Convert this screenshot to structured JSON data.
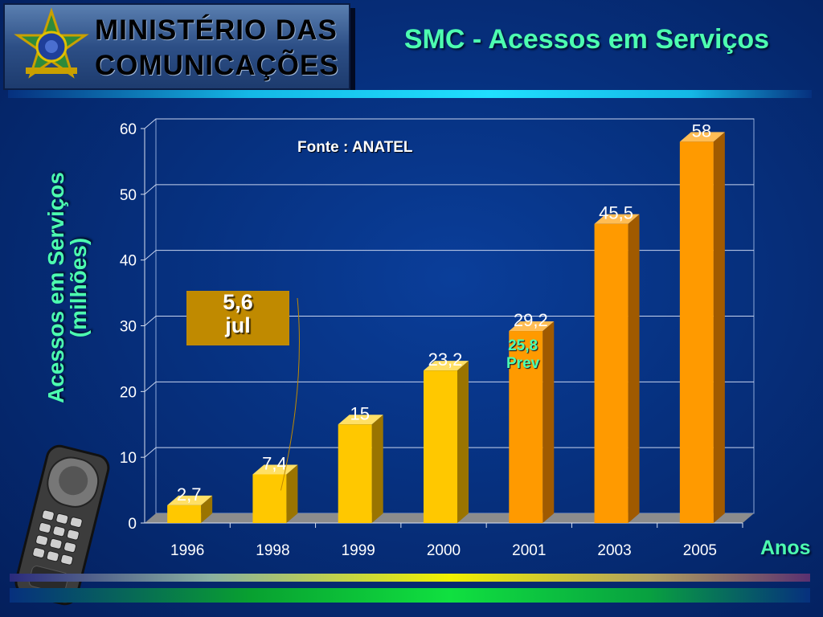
{
  "header": {
    "logo_line1": "MINISTÉRIO DAS",
    "logo_line2": "COMUNICAÇÕES",
    "title": "SMC - Acessos em Serviços"
  },
  "annotations": {
    "source": "Fonte : ANATEL",
    "callout_value": "5,6",
    "callout_label": "jul",
    "prev_value": "25,8",
    "prev_label": "Prev"
  },
  "colors": {
    "title": "#4dffb0",
    "bar_yellow": "#ffc800",
    "bar_orange": "#ff9a00",
    "callout": "#c08a00"
  },
  "chart_data": {
    "type": "bar",
    "categories": [
      "1996",
      "1998",
      "1999",
      "2000",
      "2001",
      "2003",
      "2005"
    ],
    "values": [
      2.7,
      7.4,
      15,
      23.2,
      29.2,
      45.5,
      58
    ],
    "value_labels": [
      "2,7",
      "7,4",
      "15",
      "23,2",
      "29,2",
      "45,5",
      "58"
    ],
    "bar_colors": [
      "#ffc800",
      "#ffc800",
      "#ffc800",
      "#ffc800",
      "#ff9a00",
      "#ff9a00",
      "#ff9a00"
    ],
    "ylabel_line1": "Acessos em Serviços",
    "ylabel_line2": "(milhões)",
    "xlabel": "Anos",
    "ylim": [
      0,
      60
    ],
    "yticks": [
      0,
      10,
      20,
      30,
      40,
      50,
      60
    ],
    "grid": true,
    "style": "3d"
  }
}
